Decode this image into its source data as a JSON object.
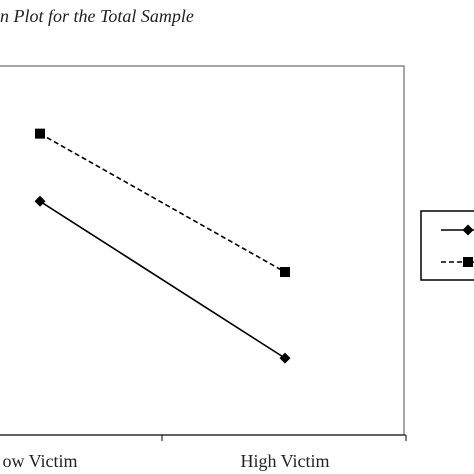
{
  "chart_data": {
    "type": "line",
    "title": "n Plot for the Total Sample",
    "categories": [
      "ow Victim",
      "High Victim"
    ],
    "series": [
      {
        "values": [
          0.76,
          0.25
        ],
        "line_style": "solid",
        "marker": "diamond",
        "color": "#000000"
      },
      {
        "values": [
          0.98,
          0.53
        ],
        "line_style": "dashed",
        "marker": "square",
        "color": "#000000"
      }
    ],
    "ylim": [
      0,
      1.2
    ],
    "grid": false,
    "legend": "right"
  }
}
